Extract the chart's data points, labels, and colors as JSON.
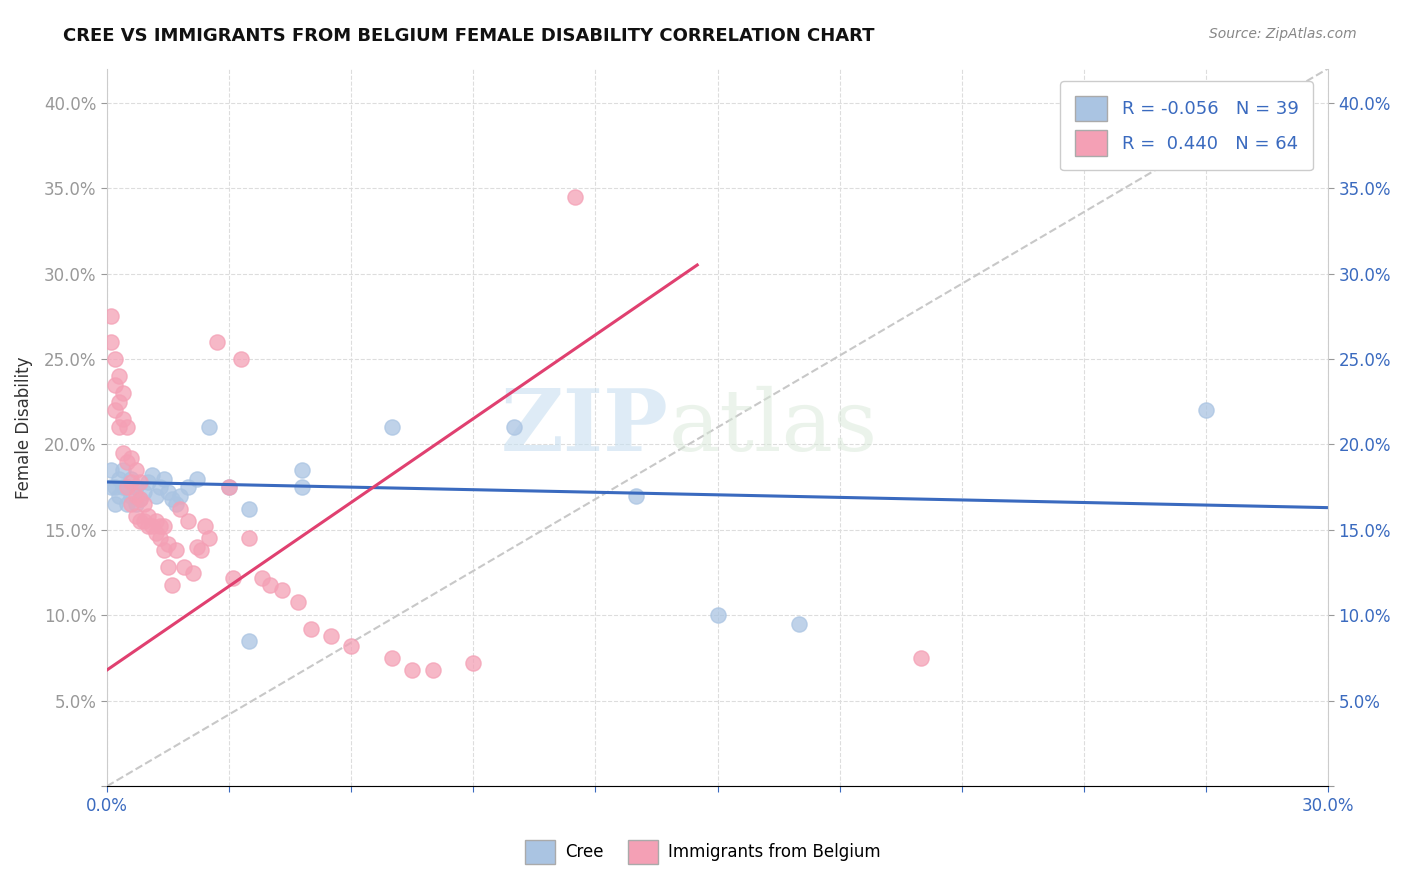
{
  "title": "CREE VS IMMIGRANTS FROM BELGIUM FEMALE DISABILITY CORRELATION CHART",
  "source": "Source: ZipAtlas.com",
  "ylabel": "Female Disability",
  "watermark_zip": "ZIP",
  "watermark_atlas": "atlas",
  "xlim": [
    0.0,
    0.3
  ],
  "ylim": [
    0.0,
    0.42
  ],
  "xticks": [
    0.0,
    0.03,
    0.06,
    0.09,
    0.12,
    0.15,
    0.18,
    0.21,
    0.24,
    0.27,
    0.3
  ],
  "yticks": [
    0.0,
    0.05,
    0.1,
    0.15,
    0.2,
    0.25,
    0.3,
    0.35,
    0.4
  ],
  "ytick_labels_left": [
    "",
    "5.0%",
    "10.0%",
    "15.0%",
    "20.0%",
    "25.0%",
    "30.0%",
    "35.0%",
    "40.0%"
  ],
  "ytick_labels_right": [
    "",
    "5.0%",
    "10.0%",
    "15.0%",
    "20.0%",
    "25.0%",
    "30.0%",
    "35.0%",
    "40.0%"
  ],
  "xtick_labels": [
    "0.0%",
    "",
    "",
    "",
    "",
    "",
    "",
    "",
    "",
    "",
    "30.0%"
  ],
  "legend_R_cree": "-0.056",
  "legend_N_cree": "39",
  "legend_R_belgium": "0.440",
  "legend_N_belgium": "64",
  "cree_color": "#aac4e2",
  "belgium_color": "#f4a0b5",
  "trendline_cree_color": "#3a6abf",
  "trendline_belgium_color": "#e04070",
  "trendline_diagonal_color": "#c8c8c8",
  "background_color": "#ffffff",
  "trendline_cree": [
    [
      0.0,
      0.178
    ],
    [
      0.3,
      0.163
    ]
  ],
  "trendline_belgium": [
    [
      0.0,
      0.068
    ],
    [
      0.145,
      0.305
    ]
  ],
  "diagonal_line": [
    [
      0.0,
      0.0
    ],
    [
      0.3,
      0.42
    ]
  ],
  "cree_points": [
    [
      0.001,
      0.175
    ],
    [
      0.001,
      0.185
    ],
    [
      0.002,
      0.165
    ],
    [
      0.002,
      0.175
    ],
    [
      0.003,
      0.17
    ],
    [
      0.003,
      0.18
    ],
    [
      0.004,
      0.175
    ],
    [
      0.004,
      0.185
    ],
    [
      0.005,
      0.165
    ],
    [
      0.005,
      0.175
    ],
    [
      0.006,
      0.17
    ],
    [
      0.006,
      0.18
    ],
    [
      0.007,
      0.165
    ],
    [
      0.007,
      0.175
    ],
    [
      0.008,
      0.168
    ],
    [
      0.009,
      0.172
    ],
    [
      0.01,
      0.178
    ],
    [
      0.011,
      0.182
    ],
    [
      0.012,
      0.17
    ],
    [
      0.013,
      0.175
    ],
    [
      0.014,
      0.18
    ],
    [
      0.015,
      0.172
    ],
    [
      0.016,
      0.168
    ],
    [
      0.017,
      0.165
    ],
    [
      0.018,
      0.17
    ],
    [
      0.02,
      0.175
    ],
    [
      0.022,
      0.18
    ],
    [
      0.025,
      0.21
    ],
    [
      0.03,
      0.175
    ],
    [
      0.035,
      0.162
    ],
    [
      0.035,
      0.085
    ],
    [
      0.048,
      0.175
    ],
    [
      0.048,
      0.185
    ],
    [
      0.07,
      0.21
    ],
    [
      0.1,
      0.21
    ],
    [
      0.13,
      0.17
    ],
    [
      0.15,
      0.1
    ],
    [
      0.17,
      0.095
    ],
    [
      0.27,
      0.22
    ]
  ],
  "belgium_points": [
    [
      0.001,
      0.26
    ],
    [
      0.001,
      0.275
    ],
    [
      0.002,
      0.22
    ],
    [
      0.002,
      0.235
    ],
    [
      0.002,
      0.25
    ],
    [
      0.003,
      0.21
    ],
    [
      0.003,
      0.225
    ],
    [
      0.003,
      0.24
    ],
    [
      0.004,
      0.195
    ],
    [
      0.004,
      0.215
    ],
    [
      0.004,
      0.23
    ],
    [
      0.005,
      0.175
    ],
    [
      0.005,
      0.19
    ],
    [
      0.005,
      0.21
    ],
    [
      0.006,
      0.165
    ],
    [
      0.006,
      0.178
    ],
    [
      0.006,
      0.192
    ],
    [
      0.007,
      0.158
    ],
    [
      0.007,
      0.17
    ],
    [
      0.007,
      0.185
    ],
    [
      0.008,
      0.155
    ],
    [
      0.008,
      0.168
    ],
    [
      0.008,
      0.178
    ],
    [
      0.009,
      0.155
    ],
    [
      0.009,
      0.165
    ],
    [
      0.01,
      0.158
    ],
    [
      0.01,
      0.152
    ],
    [
      0.011,
      0.152
    ],
    [
      0.012,
      0.148
    ],
    [
      0.012,
      0.155
    ],
    [
      0.013,
      0.145
    ],
    [
      0.013,
      0.152
    ],
    [
      0.014,
      0.138
    ],
    [
      0.014,
      0.152
    ],
    [
      0.015,
      0.128
    ],
    [
      0.015,
      0.142
    ],
    [
      0.016,
      0.118
    ],
    [
      0.017,
      0.138
    ],
    [
      0.018,
      0.162
    ],
    [
      0.019,
      0.128
    ],
    [
      0.02,
      0.155
    ],
    [
      0.021,
      0.125
    ],
    [
      0.022,
      0.14
    ],
    [
      0.023,
      0.138
    ],
    [
      0.024,
      0.152
    ],
    [
      0.025,
      0.145
    ],
    [
      0.027,
      0.26
    ],
    [
      0.03,
      0.175
    ],
    [
      0.031,
      0.122
    ],
    [
      0.033,
      0.25
    ],
    [
      0.035,
      0.145
    ],
    [
      0.038,
      0.122
    ],
    [
      0.04,
      0.118
    ],
    [
      0.043,
      0.115
    ],
    [
      0.047,
      0.108
    ],
    [
      0.05,
      0.092
    ],
    [
      0.055,
      0.088
    ],
    [
      0.06,
      0.082
    ],
    [
      0.07,
      0.075
    ],
    [
      0.075,
      0.068
    ],
    [
      0.08,
      0.068
    ],
    [
      0.09,
      0.072
    ],
    [
      0.115,
      0.345
    ],
    [
      0.2,
      0.075
    ]
  ]
}
